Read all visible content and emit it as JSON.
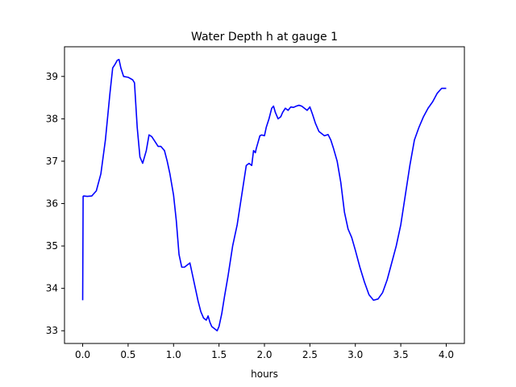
{
  "chart_data": {
    "type": "line",
    "title": "Water Depth h at gauge 1",
    "xlabel": "hours",
    "ylabel": "",
    "xlim": [
      -0.2,
      4.2
    ],
    "ylim": [
      32.7,
      39.7
    ],
    "xticks": [
      0.0,
      0.5,
      1.0,
      1.5,
      2.0,
      2.5,
      3.0,
      3.5,
      4.0
    ],
    "xtick_labels": [
      "0.0",
      "0.5",
      "1.0",
      "1.5",
      "2.0",
      "2.5",
      "3.0",
      "3.5",
      "4.0"
    ],
    "yticks": [
      33,
      34,
      35,
      36,
      37,
      38,
      39
    ],
    "ytick_labels": [
      "33",
      "34",
      "35",
      "36",
      "37",
      "38",
      "39"
    ],
    "grid": false,
    "legend": "none",
    "series": [
      {
        "color": "#0000ff",
        "x": [
          0.0,
          0.005,
          0.01,
          0.05,
          0.1,
          0.15,
          0.2,
          0.25,
          0.3,
          0.33,
          0.36,
          0.38,
          0.4,
          0.42,
          0.45,
          0.5,
          0.55,
          0.57,
          0.6,
          0.63,
          0.66,
          0.7,
          0.73,
          0.76,
          0.8,
          0.83,
          0.86,
          0.9,
          0.93,
          0.96,
          1.0,
          1.03,
          1.06,
          1.09,
          1.12,
          1.15,
          1.18,
          1.21,
          1.24,
          1.27,
          1.3,
          1.33,
          1.36,
          1.38,
          1.4,
          1.42,
          1.45,
          1.48,
          1.5,
          1.53,
          1.56,
          1.6,
          1.65,
          1.7,
          1.75,
          1.8,
          1.83,
          1.86,
          1.88,
          1.9,
          1.91,
          1.93,
          1.95,
          1.97,
          2.0,
          2.02,
          2.05,
          2.08,
          2.1,
          2.12,
          2.15,
          2.18,
          2.2,
          2.23,
          2.26,
          2.29,
          2.32,
          2.35,
          2.38,
          2.41,
          2.44,
          2.47,
          2.5,
          2.53,
          2.56,
          2.6,
          2.63,
          2.66,
          2.7,
          2.73,
          2.76,
          2.8,
          2.84,
          2.88,
          2.92,
          2.96,
          3.0,
          3.05,
          3.1,
          3.15,
          3.2,
          3.25,
          3.3,
          3.35,
          3.4,
          3.45,
          3.5,
          3.55,
          3.6,
          3.65,
          3.7,
          3.75,
          3.8,
          3.85,
          3.9,
          3.95,
          3.98,
          4.0
        ],
        "y": [
          33.72,
          36.17,
          36.18,
          36.17,
          36.18,
          36.3,
          36.7,
          37.5,
          38.6,
          39.2,
          39.3,
          39.38,
          39.4,
          39.2,
          39.0,
          38.98,
          38.92,
          38.85,
          37.8,
          37.1,
          36.95,
          37.25,
          37.62,
          37.58,
          37.45,
          37.35,
          37.35,
          37.25,
          37.0,
          36.7,
          36.2,
          35.6,
          34.8,
          34.5,
          34.5,
          34.55,
          34.6,
          34.3,
          34.0,
          33.7,
          33.45,
          33.3,
          33.25,
          33.35,
          33.2,
          33.1,
          33.05,
          33.0,
          33.1,
          33.4,
          33.8,
          34.3,
          35.0,
          35.5,
          36.2,
          36.9,
          36.95,
          36.9,
          37.25,
          37.2,
          37.3,
          37.45,
          37.6,
          37.62,
          37.6,
          37.8,
          38.0,
          38.25,
          38.3,
          38.15,
          38.0,
          38.05,
          38.15,
          38.25,
          38.2,
          38.28,
          38.27,
          38.3,
          38.32,
          38.3,
          38.25,
          38.2,
          38.28,
          38.1,
          37.9,
          37.7,
          37.65,
          37.6,
          37.63,
          37.5,
          37.3,
          37.0,
          36.5,
          35.8,
          35.4,
          35.2,
          34.9,
          34.5,
          34.15,
          33.85,
          33.72,
          33.75,
          33.9,
          34.2,
          34.6,
          35.0,
          35.5,
          36.2,
          36.9,
          37.5,
          37.8,
          38.05,
          38.25,
          38.4,
          38.6,
          38.72,
          38.72,
          38.72
        ]
      }
    ]
  }
}
